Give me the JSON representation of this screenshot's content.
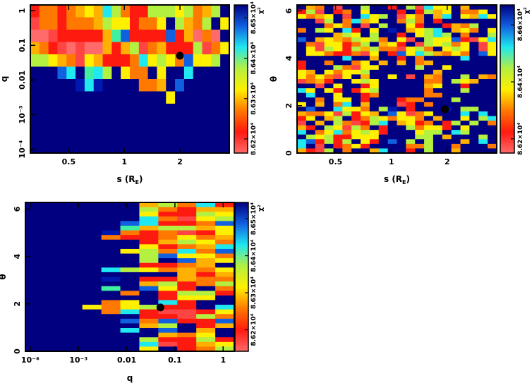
{
  "colors": {
    "codes": {
      "p": {
        "hex": "#ff6a6a",
        "frac": 0.0
      },
      "r": {
        "hex": "#ff4444",
        "frac": 0.05
      },
      "R": {
        "hex": "#ff1a10",
        "frac": 0.12
      },
      "O": {
        "hex": "#ff7800",
        "frac": 0.28
      },
      "o": {
        "hex": "#ffb000",
        "frac": 0.36
      },
      "Y": {
        "hex": "#fff000",
        "frac": 0.45
      },
      "G": {
        "hex": "#b4f040",
        "frac": 0.55
      },
      "A": {
        "hex": "#40f0a0",
        "frac": 0.64
      },
      "C": {
        "hex": "#20e8f0",
        "frac": 0.7
      },
      "B": {
        "hex": "#1060e0",
        "frac": 0.83
      },
      "D": {
        "hex": "#0018b0",
        "frac": 0.93
      },
      "N": {
        "hex": "#000080",
        "frac": 1.0
      }
    },
    "colorbar_stops": [
      "#ff6a6a",
      "#ff1a10",
      "#ff7800",
      "#fff000",
      "#b4f040",
      "#20e8f0",
      "#1060e0",
      "#000080"
    ],
    "marker": "#000000"
  },
  "chart_data": [
    {
      "type": "heatmap",
      "id": "s-q",
      "xlabel": "s (R",
      "xlabel_sub": "E",
      "xlabel_close": ")",
      "ylabel": "q",
      "xscale": "log",
      "yscale": "log",
      "xlim": [
        0.31,
        3.7
      ],
      "ylim_log10": [
        -4.11,
        0.166
      ],
      "xticks": [
        {
          "v": 0.5,
          "label": "0.5"
        },
        {
          "v": 1,
          "label": "1"
        },
        {
          "v": 2,
          "label": "2"
        }
      ],
      "yticks": [
        {
          "v": 1,
          "label": "1"
        },
        {
          "v": 0.1,
          "label": "0.1"
        },
        {
          "v": 0.01,
          "label": "0.01"
        },
        {
          "v": 0.001,
          "label": "10⁻³"
        },
        {
          "v": 0.0001,
          "label": "10⁻⁴"
        }
      ],
      "colorbar": {
        "label": "χ²",
        "range": [
          86165,
          86532
        ],
        "ticks": [
          {
            "v": 86200,
            "label": "8.62×10⁴"
          },
          {
            "v": 86300,
            "label": "8.63×10⁴"
          },
          {
            "v": 86400,
            "label": "8.64×10⁴"
          },
          {
            "v": 86500,
            "label": "8.65×10⁴"
          }
        ]
      },
      "best_fit": {
        "x": 2.0,
        "y": 0.05
      },
      "grid_rows_top_to_bottom": [
        "ROOROoYoCGORRGGGYGOoGN",
        "rOOROOOoGYYROOYNGoOGNY",
        "pprRRRRRoABRRRRBRopOpN",
        "oORrprppoRoGrOoRRRGrOY",
        "GGYoOrYoRRROCYGYOBYYGN",
        "NNNBCNACGNYOONYNNCNNNN",
        "NNNNNDCDNNNNOOoNBNNNNN",
        "NNNNNNNNNNNNNNNYNNNNNN",
        "NNNNNNNNNNNNNNNNNNNNNN",
        "NNNNNNNNNNNNNNNNNNNNNN",
        "NNNNNNNNNNNNNNNNNNNNNN",
        "NNNNNNNNNNNNNNNNNNNNNN"
      ]
    },
    {
      "type": "heatmap",
      "id": "s-theta",
      "xlabel": "s (R",
      "xlabel_sub": "E",
      "xlabel_close": ")",
      "ylabel": "θ",
      "xscale": "log",
      "yscale": "linear",
      "xlim": [
        0.31,
        3.7
      ],
      "ylim": [
        0,
        6.25
      ],
      "xticks": [
        {
          "v": 0.5,
          "label": "0.5"
        },
        {
          "v": 1,
          "label": "1"
        },
        {
          "v": 2,
          "label": "2"
        }
      ],
      "yticks": [
        {
          "v": 0,
          "label": "0"
        },
        {
          "v": 2,
          "label": "2"
        },
        {
          "v": 4,
          "label": "4"
        },
        {
          "v": 6,
          "label": "6"
        }
      ],
      "colorbar": {
        "label": "χ²",
        "range": [
          86150,
          86670
        ],
        "ticks": [
          {
            "v": 86200,
            "label": "8.62×10⁴"
          },
          {
            "v": 86400,
            "label": "8.64×10⁴"
          },
          {
            "v": 86600,
            "label": "8.66×10⁴"
          }
        ]
      },
      "best_fit": {
        "x": 1.95,
        "y": 1.85
      },
      "grid_rows_top_to_bottom": [
        "NoONrNNGNNRNGrCYYNoNNN",
        "RGrNRONYNNNRNRGoYNOOYN",
        "YOoYNrNCYGNrYONoCNYoCY",
        "NNrGNOCoYNNOGONRNNNNNN",
        "NNNOYONrNGNNYRNNRoOGNN",
        "ONGYNCRNYNDNoYGCNoYONY",
        "NNNNoGYNGNNRNYGCGNONNG",
        "BNoYoOGYGONYrNGYYBRrYC",
        "NOrYYROGNoYRNrGYGOYNrY",
        "NYrGYRGoGOOrYGONYGYNrY",
        "NYYORROrYNRBYCGoOYONBY",
        "NNNNNCNNoNNRNONNNNCNNN",
        "RNNONNOYNoNoNOoNNNNNNN",
        "RNNNGOrYYNNNNGNNYNNNNN",
        "YoNYOYYGNNNNNNNoNNNNNN",
        "YOYOrYNoNNYNrNoONNGNoO",
        "rOoRNNYGYNNNNNOONGYoNN",
        "NNrNYNNRYNNNNNoYNNRNNN",
        "CYNYRNRYGNNNNNONNNGNNN",
        "NCNNYNNRONNNNNOONNNNNN",
        "NNONYYNRNNNROONNNGNNNN",
        "YNoNOCNoNNNrRNONNNNNNN",
        "NBNNCYYONGDNRNNNDNGGNN",
        "oOOYrGRYoNBYrOYNNNCNCN",
        "RYNoGNROGYOYYONoNNYNGC",
        "rNoNGOrRGCNoYRONRGNGNO",
        "oRNGYrGONRNNGOYYRNYNNN",
        "CNOYCOYGYRNNNYGGNCGNNN",
        "NGYGRRYYYNNNNGGNoNNNGN",
        "CBRGRGNYRNBNGNGNNNoNCN",
        "CNrNROYRNNNNOOGNNONNNO",
        "oRrGNONNoCNNRNGNNoNNNN"
      ]
    },
    {
      "type": "heatmap",
      "id": "q-theta",
      "xlabel": "q",
      "ylabel": "θ",
      "xscale": "log",
      "yscale": "linear",
      "xlim_log10": [
        -4.1,
        0.23
      ],
      "ylim": [
        0,
        6.28
      ],
      "xticks": [
        {
          "v": 0.0001,
          "label": "10⁻⁴"
        },
        {
          "v": 0.001,
          "label": "10⁻³"
        },
        {
          "v": 0.01,
          "label": "0.01"
        },
        {
          "v": 0.1,
          "label": "0.1"
        },
        {
          "v": 1,
          "label": "1"
        }
      ],
      "yticks": [
        {
          "v": 0,
          "label": "0"
        },
        {
          "v": 2,
          "label": "2"
        },
        {
          "v": 4,
          "label": "4"
        },
        {
          "v": 6,
          "label": "6"
        }
      ],
      "colorbar": {
        "label": "χ²",
        "range": [
          86142,
          86544
        ],
        "ticks": [
          {
            "v": 86200,
            "label": "8.62×10⁴"
          },
          {
            "v": 86300,
            "label": "8.63×10⁴"
          },
          {
            "v": 86400,
            "label": "8.64×10⁴"
          },
          {
            "v": 86500,
            "label": "8.65×10⁴"
          }
        ]
      },
      "best_fit": {
        "x": 0.05,
        "y": 1.85
      },
      "grid_rows_top_to_bottom": [
        "NNNNNNoGOCR",
        "NNNNNNGORoo",
        "NNNNNNYRRGY",
        "NNNNNNCOrYG",
        "NNNNNBCRROB",
        "NNNNNAoGGoY",
        "NNNNDOROrRY",
        "NNNNORROYOo",
        "NNNNNNRoGYO",
        "NNNNNNYROoC",
        "NNNNNYGOCOB",
        "NNNNNNGBYYO",
        "NNNNNNGNBoY",
        "NNNNNNRROoN",
        "NNNNCGYOoOY",
        "NNNNNNNNoRo",
        "NNNNDNRRoOO",
        "NNNNNNoGROG",
        "NNNNANBYRNO",
        "NNNNNONRGGR",
        "NNNNNNNRYYN",
        "NNNNOYNCRNN",
        "NNNYOYGRRNC",
        "NNNNOCRrrRY",
        "NNNNNNRRrGO",
        "NNNNNBOBRRB",
        "NNNNNNoGNRo",
        "NNNNNCNBNoN",
        "NNNNNNNoOYN",
        "NNNNNNGRRGR",
        "NNNNNNCrRoY",
        "NNNNNNYNROG"
      ]
    }
  ]
}
